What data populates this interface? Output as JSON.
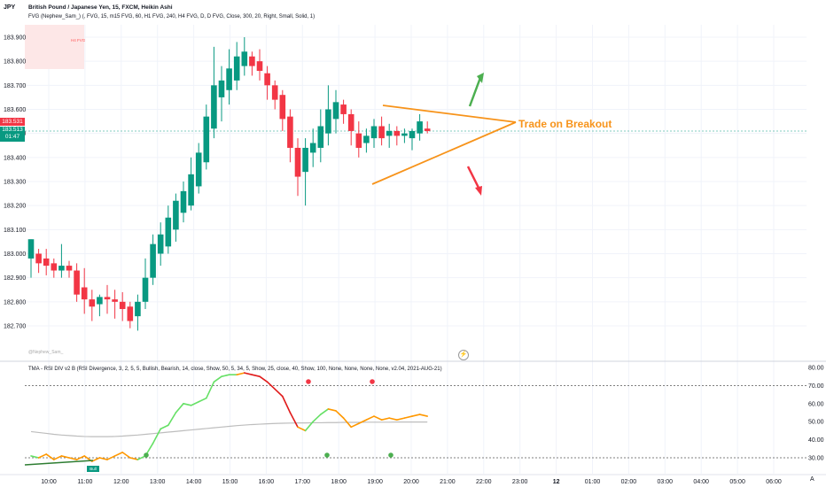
{
  "header": {
    "symbol": "JPY",
    "title_line": "British Pound / Japanese Yen, 15, FXCM, Heikin Ashi",
    "indicator_line": "FVG (Nephew_Sam_) (, FVG, 15, m15 FVG, 60, H1 FVG, 240, H4 FVG, D, D FVG, Close, 300, 20, Right, Small, Solid, 1)",
    "fvg_box_label": "H4 FVG",
    "watermark": "@Nephew_Sam_"
  },
  "price_badges": {
    "red": "183.531",
    "green_price": "183.513",
    "green_timer": "01:47"
  },
  "annotation": {
    "text": "Trade on Breakout",
    "color": "#f7931a"
  },
  "rsi_panel": {
    "title": "TMA - RSI DIV v2 B (RSI Divergence, 3, 2, 5, 5, Bullish, Bearish, 14, close, Show, 50, 5, 34, 5, Show, 25, close, 40, Show, 100, None, None, None, None, v2.04, 2021-AUG-21)",
    "bull_label": "Bull"
  },
  "colors": {
    "up": "#089981",
    "down": "#f23645",
    "rsi_up": "#66e066",
    "rsi_down": "#e01b1b",
    "rsi_mid": "#ff9800",
    "signal": "#bdbdbd"
  },
  "chart_data": [
    {
      "type": "candlestick",
      "y_ticks": [
        "183.900",
        "183.800",
        "183.700",
        "183.600",
        "183.500",
        "183.400",
        "183.300",
        "183.200",
        "183.100",
        "183.000",
        "182.900",
        "182.800",
        "182.700"
      ],
      "x_ticks": [
        "10:00",
        "11:00",
        "12:00",
        "13:00",
        "14:00",
        "15:00",
        "16:00",
        "17:00",
        "18:00",
        "19:00",
        "20:00",
        "21:00",
        "22:00",
        "23:00",
        "12",
        "01:00",
        "02:00",
        "03:00",
        "04:00",
        "05:00",
        "06:00"
      ],
      "ylim": [
        182.63,
        183.96
      ],
      "candles": [
        [
          182.98,
          183.06,
          182.9,
          183.06
        ],
        [
          183.0,
          183.02,
          182.92,
          182.96
        ],
        [
          182.98,
          183.02,
          182.91,
          182.95
        ],
        [
          182.96,
          182.98,
          182.9,
          182.93
        ],
        [
          182.93,
          183.04,
          182.9,
          182.95
        ],
        [
          182.95,
          182.97,
          182.9,
          182.93
        ],
        [
          182.93,
          182.96,
          182.8,
          182.83
        ],
        [
          182.86,
          182.94,
          182.75,
          182.81
        ],
        [
          182.81,
          182.85,
          182.72,
          182.78
        ],
        [
          182.79,
          182.83,
          182.74,
          182.82
        ],
        [
          182.82,
          182.87,
          182.75,
          182.81
        ],
        [
          182.81,
          182.85,
          182.73,
          182.8
        ],
        [
          182.8,
          182.84,
          182.72,
          182.77
        ],
        [
          182.78,
          182.8,
          182.69,
          182.72
        ],
        [
          182.74,
          182.83,
          182.68,
          182.8
        ],
        [
          182.8,
          182.98,
          182.77,
          182.9
        ],
        [
          182.9,
          183.08,
          182.87,
          183.04
        ],
        [
          183.0,
          183.13,
          182.95,
          183.08
        ],
        [
          183.03,
          183.2,
          183.0,
          183.15
        ],
        [
          183.1,
          183.25,
          183.05,
          183.22
        ],
        [
          183.17,
          183.3,
          183.13,
          183.26
        ],
        [
          183.2,
          183.4,
          183.18,
          183.33
        ],
        [
          183.28,
          183.46,
          183.25,
          183.42
        ],
        [
          183.38,
          183.62,
          183.35,
          183.57
        ],
        [
          183.52,
          183.86,
          183.48,
          183.7
        ],
        [
          183.65,
          183.78,
          183.55,
          183.72
        ],
        [
          183.68,
          183.85,
          183.62,
          183.77
        ],
        [
          183.72,
          183.88,
          183.68,
          183.82
        ],
        [
          183.78,
          183.9,
          183.74,
          183.84
        ],
        [
          183.82,
          183.84,
          183.74,
          183.78
        ],
        [
          183.8,
          183.85,
          183.72,
          183.76
        ],
        [
          183.75,
          183.78,
          183.64,
          183.7
        ],
        [
          183.7,
          183.72,
          183.6,
          183.64
        ],
        [
          183.66,
          183.68,
          183.51,
          183.56
        ],
        [
          183.57,
          183.6,
          183.38,
          183.44
        ],
        [
          183.44,
          183.48,
          183.24,
          183.32
        ],
        [
          183.34,
          183.48,
          183.2,
          183.44
        ],
        [
          183.42,
          183.52,
          183.36,
          183.46
        ],
        [
          183.44,
          183.6,
          183.38,
          183.53
        ],
        [
          183.5,
          183.7,
          183.45,
          183.6
        ],
        [
          183.56,
          183.68,
          183.5,
          183.63
        ],
        [
          183.62,
          183.64,
          183.54,
          183.58
        ],
        [
          183.58,
          183.6,
          183.45,
          183.51
        ],
        [
          183.5,
          183.55,
          183.4,
          183.44
        ],
        [
          183.46,
          183.52,
          183.42,
          183.49
        ],
        [
          183.48,
          183.56,
          183.44,
          183.53
        ],
        [
          183.53,
          183.57,
          183.45,
          183.48
        ],
        [
          183.49,
          183.54,
          183.44,
          183.51
        ],
        [
          183.51,
          183.53,
          183.45,
          183.49
        ],
        [
          183.49,
          183.52,
          183.46,
          183.5
        ],
        [
          183.48,
          183.52,
          183.43,
          183.51
        ],
        [
          183.5,
          183.58,
          183.47,
          183.55
        ],
        [
          183.52,
          183.55,
          183.5,
          183.51
        ]
      ]
    },
    {
      "type": "line",
      "name": "RSI",
      "y_ticks": [
        "80.00",
        "70.00",
        "60.00",
        "50.00",
        "40.00",
        "30.00"
      ],
      "ylim": [
        27,
        82
      ],
      "levels": [
        70,
        30
      ],
      "values": [
        31,
        30,
        32,
        29,
        31,
        30,
        29,
        31,
        28,
        30,
        29,
        31,
        33,
        30,
        29,
        31,
        38,
        46,
        48,
        55,
        60,
        59,
        61,
        63,
        72,
        75,
        76,
        76,
        77,
        76,
        75,
        72,
        68,
        64,
        55,
        47,
        45,
        50,
        54,
        57,
        56,
        52,
        47,
        49,
        51,
        53,
        51,
        52,
        51,
        52,
        53,
        54,
        53
      ],
      "signal": [
        44.5,
        44,
        43.5,
        43,
        42.6,
        42.3,
        42,
        41.8,
        41.7,
        41.7,
        41.7,
        41.8,
        42,
        42.3,
        42.6,
        43,
        43.4,
        43.8,
        44.2,
        44.6,
        45,
        45.4,
        45.8,
        46.2,
        46.6,
        47,
        47.4,
        47.8,
        48.1,
        48.4,
        48.6,
        48.8,
        49,
        49.1,
        49.2,
        49.3,
        49.3,
        49.4,
        49.4,
        49.5,
        49.5,
        49.6,
        49.6,
        49.6,
        49.7,
        49.7,
        49.7,
        49.7,
        49.8,
        49.8,
        49.8,
        49.8,
        49.8
      ],
      "colors": [
        "g",
        "g",
        "o",
        "o",
        "o",
        "o",
        "o",
        "o",
        "o",
        "o",
        "o",
        "o",
        "o",
        "o",
        "o",
        "g",
        "g",
        "g",
        "g",
        "g",
        "g",
        "g",
        "g",
        "g",
        "g",
        "g",
        "g",
        "g",
        "o",
        "r",
        "r",
        "r",
        "r",
        "r",
        "r",
        "r",
        "o",
        "g",
        "g",
        "g",
        "o",
        "o",
        "o",
        "o",
        "o",
        "o",
        "o",
        "o",
        "o",
        "o",
        "o",
        "o",
        "o"
      ]
    }
  ]
}
